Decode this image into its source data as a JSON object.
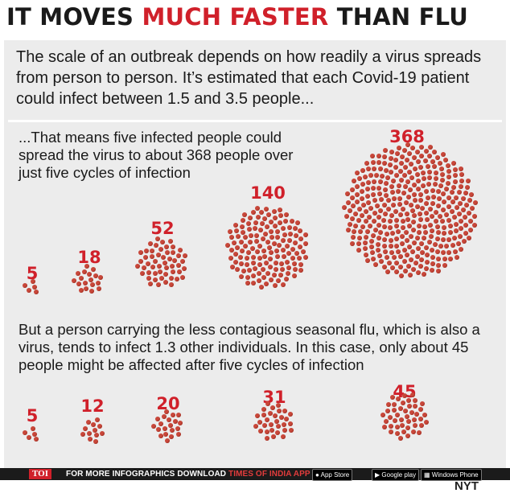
{
  "title": {
    "part1": "IT MOVES",
    "highlight": "MUCH FASTER",
    "part2": "THAN FLU"
  },
  "intro": "The scale of an outbreak depends on how readily a virus spreads from person to person. It’s estimated that each Covid-19 patient could infect between 1.5 and 3.5 people...",
  "covid": {
    "text": "...That means five infected people could spread the virus to about 368 people over just five cycles of infection",
    "counts": [
      5,
      18,
      52,
      140,
      368
    ]
  },
  "flu": {
    "text": "But a person carrying the less contagious seasonal flu, which is also a virus, tends to infect 1.3 other individuals. In this case, only about 45 people might be affected after five cycles of infection",
    "counts": [
      5,
      12,
      20,
      31,
      45
    ]
  },
  "source": "NYT",
  "footer": {
    "brand": "TOI",
    "promo": "FOR MORE INFOGRAPHICS DOWNLOAD",
    "app": "TIMES OF INDIA APP",
    "stores": [
      "App Store",
      "Google play",
      "Windows Phone"
    ]
  },
  "colors": {
    "accent": "#d0202a",
    "dot": "#c8473a",
    "panel": "#ececec"
  }
}
